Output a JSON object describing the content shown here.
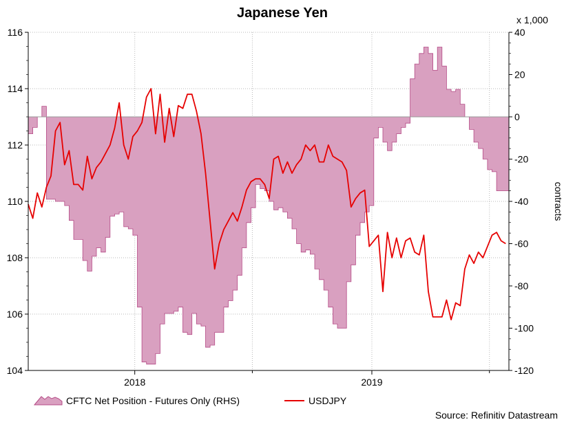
{
  "chart_data": {
    "type": "line",
    "title": "Japanese Yen",
    "source": "Source: Refinitiv Datastream",
    "y_left": {
      "ticks": [
        "116",
        "114",
        "112",
        "110",
        "108",
        "106",
        "104"
      ],
      "ylim": [
        104,
        116
      ]
    },
    "y_right": {
      "ticks": [
        "40",
        "20",
        "0",
        "-20",
        "-40",
        "-60",
        "-80",
        "-100",
        "-120"
      ],
      "ylim": [
        -120,
        40
      ],
      "label": "contracts",
      "unit_label": "x 1,000"
    },
    "x_labels": [
      "2018",
      "2019"
    ],
    "x_range": [
      "2017-07-21",
      "2019-07-31"
    ],
    "x_label_dates": [
      "2018-01-01",
      "2019-01-01"
    ],
    "x_minor_dates": [
      "2017-07-01",
      "2018-07-01",
      "2019-07-01"
    ],
    "grid": true,
    "legend_position": "bottom-left",
    "colors": {
      "area_fill": "#d9a0c0",
      "area_edge": "#b54a86",
      "line": "#e60000",
      "grid": "#b7b7b7"
    },
    "series": [
      {
        "name": "CFTC Net Position - Futures Only (RHS)",
        "type": "area",
        "axis": "right",
        "dates": [
          "2017-07-21",
          "2017-07-28",
          "2017-08-04",
          "2017-08-11",
          "2017-08-18",
          "2017-08-25",
          "2017-09-01",
          "2017-09-08",
          "2017-09-15",
          "2017-09-22",
          "2017-09-29",
          "2017-10-06",
          "2017-10-13",
          "2017-10-20",
          "2017-10-27",
          "2017-11-03",
          "2017-11-10",
          "2017-11-17",
          "2017-11-24",
          "2017-12-01",
          "2017-12-08",
          "2017-12-15",
          "2017-12-22",
          "2017-12-29",
          "2018-01-05",
          "2018-01-12",
          "2018-01-19",
          "2018-01-26",
          "2018-02-02",
          "2018-02-09",
          "2018-02-16",
          "2018-02-23",
          "2018-03-02",
          "2018-03-09",
          "2018-03-16",
          "2018-03-23",
          "2018-03-30",
          "2018-04-06",
          "2018-04-13",
          "2018-04-20",
          "2018-04-27",
          "2018-05-04",
          "2018-05-11",
          "2018-05-18",
          "2018-05-25",
          "2018-06-01",
          "2018-06-08",
          "2018-06-15",
          "2018-06-22",
          "2018-06-29",
          "2018-07-06",
          "2018-07-13",
          "2018-07-20",
          "2018-07-27",
          "2018-08-03",
          "2018-08-10",
          "2018-08-17",
          "2018-08-24",
          "2018-08-31",
          "2018-09-07",
          "2018-09-14",
          "2018-09-21",
          "2018-09-28",
          "2018-10-05",
          "2018-10-12",
          "2018-10-19",
          "2018-10-26",
          "2018-11-02",
          "2018-11-09",
          "2018-11-16",
          "2018-11-23",
          "2018-11-30",
          "2018-12-07",
          "2018-12-14",
          "2018-12-21",
          "2018-12-28",
          "2019-01-04",
          "2019-01-11",
          "2019-01-18",
          "2019-01-25",
          "2019-02-01",
          "2019-02-08",
          "2019-02-15",
          "2019-02-22",
          "2019-03-01",
          "2019-03-08",
          "2019-03-15",
          "2019-03-22",
          "2019-03-29",
          "2019-04-05",
          "2019-04-12",
          "2019-04-19",
          "2019-04-26",
          "2019-05-03",
          "2019-05-10",
          "2019-05-17",
          "2019-05-24",
          "2019-05-31",
          "2019-06-07",
          "2019-06-14",
          "2019-06-21",
          "2019-06-28",
          "2019-07-05",
          "2019-07-12",
          "2019-07-19",
          "2019-07-26"
        ],
        "values": [
          -8,
          -5,
          0,
          5,
          -39,
          -39,
          -40,
          -40,
          -42,
          -49,
          -58,
          -58,
          -68,
          -73,
          -66,
          -62,
          -64,
          -57,
          -47,
          -46,
          -45,
          -52,
          -53,
          -56,
          -90,
          -116,
          -117,
          -117,
          -112,
          -98,
          -93,
          -93,
          -92,
          -90,
          -102,
          -103,
          -93,
          -98,
          -99,
          -109,
          -108,
          -102,
          -102,
          -90,
          -87,
          -82,
          -75,
          -62,
          -50,
          -43,
          -32,
          -34,
          -35,
          -40,
          -44,
          -43,
          -45,
          -48,
          -53,
          -60,
          -64,
          -63,
          -65,
          -72,
          -77,
          -82,
          -90,
          -98,
          -100,
          -100,
          -78,
          -70,
          -56,
          -50,
          -45,
          -42,
          -10,
          -5,
          -12,
          -16,
          -12,
          -8,
          -5,
          -3,
          18,
          25,
          30,
          33,
          30,
          22,
          33,
          24,
          13,
          12,
          13,
          6,
          0,
          -6,
          -12,
          -15,
          -20,
          -25,
          -26,
          -35,
          -35,
          -35
        ]
      },
      {
        "name": "USDJPY",
        "type": "line",
        "axis": "left",
        "dates": [
          "2017-07-21",
          "2017-07-28",
          "2017-08-04",
          "2017-08-11",
          "2017-08-18",
          "2017-08-25",
          "2017-09-01",
          "2017-09-08",
          "2017-09-15",
          "2017-09-22",
          "2017-09-29",
          "2017-10-06",
          "2017-10-13",
          "2017-10-20",
          "2017-10-27",
          "2017-11-03",
          "2017-11-10",
          "2017-11-17",
          "2017-11-24",
          "2017-12-01",
          "2017-12-08",
          "2017-12-15",
          "2017-12-22",
          "2017-12-29",
          "2018-01-05",
          "2018-01-12",
          "2018-01-19",
          "2018-01-26",
          "2018-02-02",
          "2018-02-09",
          "2018-02-16",
          "2018-02-23",
          "2018-03-02",
          "2018-03-09",
          "2018-03-16",
          "2018-03-23",
          "2018-03-30",
          "2018-04-06",
          "2018-04-13",
          "2018-04-20",
          "2018-04-27",
          "2018-05-04",
          "2018-05-11",
          "2018-05-18",
          "2018-05-25",
          "2018-06-01",
          "2018-06-08",
          "2018-06-15",
          "2018-06-22",
          "2018-06-29",
          "2018-07-06",
          "2018-07-13",
          "2018-07-20",
          "2018-07-27",
          "2018-08-03",
          "2018-08-10",
          "2018-08-17",
          "2018-08-24",
          "2018-08-31",
          "2018-09-07",
          "2018-09-14",
          "2018-09-21",
          "2018-09-28",
          "2018-10-05",
          "2018-10-12",
          "2018-10-19",
          "2018-10-26",
          "2018-11-02",
          "2018-11-09",
          "2018-11-16",
          "2018-11-23",
          "2018-11-30",
          "2018-12-07",
          "2018-12-14",
          "2018-12-21",
          "2018-12-28",
          "2019-01-04",
          "2019-01-11",
          "2019-01-18",
          "2019-01-25",
          "2019-02-01",
          "2019-02-08",
          "2019-02-15",
          "2019-02-22",
          "2019-03-01",
          "2019-03-08",
          "2019-03-15",
          "2019-03-22",
          "2019-03-29",
          "2019-04-05",
          "2019-04-12",
          "2019-04-19",
          "2019-04-26",
          "2019-05-03",
          "2019-05-10",
          "2019-05-17",
          "2019-05-24",
          "2019-05-31",
          "2019-06-07",
          "2019-06-14",
          "2019-06-21",
          "2019-06-28",
          "2019-07-05",
          "2019-07-12",
          "2019-07-19",
          "2019-07-26"
        ],
        "values": [
          109.9,
          109.4,
          110.3,
          109.8,
          110.5,
          110.9,
          112.5,
          112.8,
          111.3,
          111.8,
          110.6,
          110.6,
          110.4,
          111.6,
          110.8,
          111.2,
          111.4,
          111.7,
          112.0,
          112.6,
          113.5,
          112.0,
          111.5,
          112.3,
          112.5,
          112.8,
          113.7,
          114.0,
          112.4,
          113.8,
          112.1,
          113.3,
          112.3,
          113.4,
          113.3,
          113.8,
          113.8,
          113.2,
          112.4,
          111.0,
          109.3,
          107.6,
          108.5,
          109.0,
          109.3,
          109.6,
          109.3,
          109.8,
          110.4,
          110.7,
          110.8,
          110.8,
          110.6,
          110.1,
          111.5,
          111.6,
          111.0,
          111.4,
          111.0,
          111.3,
          111.5,
          112.0,
          111.8,
          112.0,
          111.4,
          111.4,
          112.0,
          111.6,
          111.5,
          111.4,
          111.1,
          109.8,
          110.1,
          110.3,
          110.4,
          108.4,
          108.6,
          108.8,
          106.8,
          108.9,
          108.0,
          108.7,
          108.0,
          108.6,
          108.7,
          108.2,
          108.1,
          108.8,
          106.8,
          105.9,
          105.9,
          105.9,
          106.5,
          105.8,
          106.4,
          106.3,
          107.6,
          108.1,
          107.8,
          108.2,
          108.0,
          108.4,
          108.8,
          108.9,
          108.6,
          108.5
        ]
      }
    ]
  },
  "legend": {
    "area_label": "CFTC Net Position - Futures Only (RHS)",
    "line_label": "USDJPY"
  }
}
